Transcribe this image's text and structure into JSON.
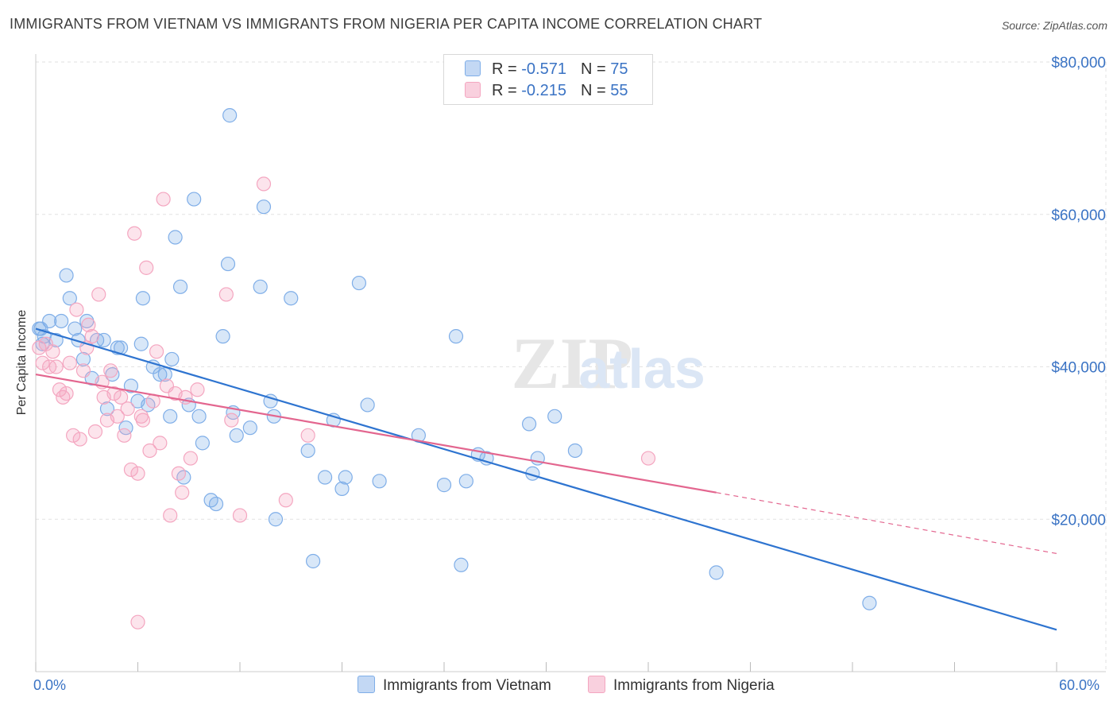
{
  "title": "IMMIGRANTS FROM VIETNAM VS IMMIGRANTS FROM NIGERIA PER CAPITA INCOME CORRELATION CHART",
  "source": "Source: ZipAtlas.com",
  "watermark": {
    "zip": "ZIP",
    "atlas": "atlas"
  },
  "legend": {
    "r_label": "R = ",
    "n_label": "N = ",
    "rows": [
      {
        "r": "-0.571",
        "n": "75",
        "color": "#7faee8"
      },
      {
        "r": "-0.215",
        "n": "55",
        "color": "#f4a6c0"
      }
    ]
  },
  "bottom_legend": [
    "Immigrants from Vietnam",
    "Immigrants from Nigeria"
  ],
  "x_labels": {
    "min": "0.0%",
    "max": "60.0%"
  },
  "chart_data": {
    "type": "scatter",
    "title": "IMMIGRANTS FROM VIETNAM VS IMMIGRANTS FROM NIGERIA PER CAPITA INCOME CORRELATION CHART",
    "xlabel": "",
    "ylabel": "Per Capita Income",
    "xlim": [
      0,
      60
    ],
    "ylim": [
      0,
      80000
    ],
    "y_ticks": [
      20000,
      40000,
      60000,
      80000
    ],
    "y_tick_labels": [
      "$20,000",
      "$40,000",
      "$60,000",
      "$80,000"
    ],
    "x_ticks": [
      0,
      6,
      12,
      18,
      24,
      30,
      36,
      42,
      48,
      54,
      60
    ],
    "series": [
      {
        "name": "Immigrants from Vietnam",
        "color": "#7faee8",
        "line_color": "#2e74d0",
        "trend": {
          "x0": 0,
          "y0": 45000,
          "x1": 60,
          "y1": 5500
        },
        "points": [
          [
            0.3,
            45000
          ],
          [
            0.5,
            44000
          ],
          [
            0.8,
            46000
          ],
          [
            1.2,
            43500
          ],
          [
            1.5,
            46000
          ],
          [
            1.8,
            52000
          ],
          [
            2.0,
            49000
          ],
          [
            2.3,
            45000
          ],
          [
            2.5,
            43500
          ],
          [
            2.8,
            41000
          ],
          [
            3.3,
            38500
          ],
          [
            3.6,
            43500
          ],
          [
            4.0,
            43500
          ],
          [
            4.2,
            34500
          ],
          [
            4.5,
            39000
          ],
          [
            4.8,
            42500
          ],
          [
            5.0,
            42500
          ],
          [
            5.3,
            32000
          ],
          [
            5.6,
            37500
          ],
          [
            6.0,
            35500
          ],
          [
            6.2,
            43000
          ],
          [
            6.3,
            49000
          ],
          [
            6.6,
            35000
          ],
          [
            6.9,
            40000
          ],
          [
            7.3,
            39000
          ],
          [
            7.6,
            39000
          ],
          [
            7.9,
            33500
          ],
          [
            8.0,
            41000
          ],
          [
            8.2,
            57000
          ],
          [
            8.5,
            50500
          ],
          [
            8.7,
            25500
          ],
          [
            9.0,
            35000
          ],
          [
            9.3,
            62000
          ],
          [
            9.6,
            33500
          ],
          [
            9.8,
            30000
          ],
          [
            10.3,
            22500
          ],
          [
            10.6,
            22000
          ],
          [
            11.0,
            44000
          ],
          [
            11.3,
            53500
          ],
          [
            11.6,
            34000
          ],
          [
            11.8,
            31000
          ],
          [
            11.4,
            73000
          ],
          [
            12.6,
            32000
          ],
          [
            13.2,
            50500
          ],
          [
            13.4,
            61000
          ],
          [
            13.8,
            35500
          ],
          [
            14.0,
            33500
          ],
          [
            14.1,
            20000
          ],
          [
            15.0,
            49000
          ],
          [
            16.0,
            29000
          ],
          [
            16.3,
            14500
          ],
          [
            17.0,
            25500
          ],
          [
            17.5,
            33000
          ],
          [
            18.0,
            24000
          ],
          [
            18.2,
            25500
          ],
          [
            19.0,
            51000
          ],
          [
            19.5,
            35000
          ],
          [
            20.2,
            25000
          ],
          [
            22.5,
            31000
          ],
          [
            24.0,
            24500
          ],
          [
            24.7,
            44000
          ],
          [
            25.0,
            14000
          ],
          [
            25.3,
            25000
          ],
          [
            26.0,
            28500
          ],
          [
            26.5,
            28000
          ],
          [
            29.0,
            32500
          ],
          [
            29.2,
            26000
          ],
          [
            29.5,
            28000
          ],
          [
            30.5,
            33500
          ],
          [
            31.7,
            29000
          ],
          [
            40.0,
            13000
          ],
          [
            49.0,
            9000
          ],
          [
            0.2,
            45000
          ],
          [
            0.4,
            43000
          ],
          [
            3.0,
            46000
          ]
        ]
      },
      {
        "name": "Immigrants from Nigeria",
        "color": "#f4a6c0",
        "line_color": "#e3668f",
        "trend": {
          "x0": 0,
          "y0": 39000,
          "x1": 40,
          "y1": 23500
        },
        "trend_dashed": {
          "x0": 40,
          "y0": 23500,
          "x1": 60,
          "y1": 15500
        },
        "points": [
          [
            0.2,
            42500
          ],
          [
            0.4,
            40500
          ],
          [
            0.6,
            43000
          ],
          [
            0.8,
            40000
          ],
          [
            1.0,
            42000
          ],
          [
            1.2,
            40000
          ],
          [
            1.4,
            37000
          ],
          [
            1.6,
            36000
          ],
          [
            1.8,
            36500
          ],
          [
            2.0,
            40500
          ],
          [
            2.2,
            31000
          ],
          [
            2.4,
            47500
          ],
          [
            2.6,
            30500
          ],
          [
            2.8,
            39500
          ],
          [
            3.0,
            42500
          ],
          [
            3.1,
            45500
          ],
          [
            3.3,
            44000
          ],
          [
            3.5,
            31500
          ],
          [
            3.7,
            49500
          ],
          [
            3.9,
            38000
          ],
          [
            4.0,
            36000
          ],
          [
            4.2,
            33000
          ],
          [
            4.4,
            39500
          ],
          [
            4.6,
            36500
          ],
          [
            4.8,
            33500
          ],
          [
            5.0,
            36000
          ],
          [
            5.2,
            31000
          ],
          [
            5.4,
            34500
          ],
          [
            5.6,
            26500
          ],
          [
            5.8,
            57500
          ],
          [
            6.0,
            26000
          ],
          [
            6.2,
            33500
          ],
          [
            6.3,
            33000
          ],
          [
            6.5,
            53000
          ],
          [
            6.7,
            29000
          ],
          [
            6.9,
            35500
          ],
          [
            7.1,
            42000
          ],
          [
            7.3,
            30000
          ],
          [
            7.5,
            62000
          ],
          [
            7.7,
            37500
          ],
          [
            7.9,
            20500
          ],
          [
            8.2,
            36500
          ],
          [
            8.4,
            26000
          ],
          [
            8.6,
            23500
          ],
          [
            8.8,
            36000
          ],
          [
            9.1,
            28000
          ],
          [
            9.5,
            37000
          ],
          [
            11.2,
            49500
          ],
          [
            11.5,
            33000
          ],
          [
            12.0,
            20500
          ],
          [
            13.4,
            64000
          ],
          [
            14.7,
            22500
          ],
          [
            16.0,
            31000
          ],
          [
            36.0,
            28000
          ],
          [
            6.0,
            6500
          ]
        ]
      }
    ]
  }
}
